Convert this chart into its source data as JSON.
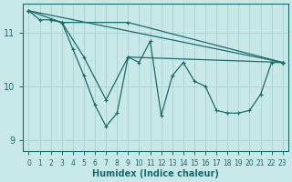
{
  "xlabel": "Humidex (Indice chaleur)",
  "bg_color": "#c8e8e8",
  "grid_color": "#aed4d4",
  "line_color": "#1a6b6b",
  "xlim": [
    -0.5,
    23.5
  ],
  "ylim": [
    8.78,
    11.55
  ],
  "yticks": [
    9,
    10,
    11
  ],
  "xticks": [
    0,
    1,
    2,
    3,
    4,
    5,
    6,
    7,
    8,
    9,
    10,
    11,
    12,
    13,
    14,
    15,
    16,
    17,
    18,
    19,
    20,
    21,
    22,
    23
  ],
  "line1_x": [
    0,
    1,
    2,
    3,
    9,
    23
  ],
  "line1_y": [
    11.42,
    11.25,
    11.25,
    11.2,
    11.2,
    10.45
  ],
  "line2_x": [
    0,
    3,
    4,
    5,
    6,
    7,
    8,
    9,
    23
  ],
  "line2_y": [
    11.42,
    11.2,
    10.7,
    10.2,
    9.65,
    9.25,
    9.5,
    10.55,
    10.45
  ],
  "line3_x": [
    2,
    3,
    5,
    7,
    9,
    10,
    11,
    12,
    13,
    14,
    15,
    16,
    17,
    18,
    19,
    20,
    21,
    22,
    23
  ],
  "line3_y": [
    11.25,
    11.2,
    10.55,
    9.75,
    10.55,
    10.45,
    10.85,
    9.45,
    10.2,
    10.45,
    10.1,
    10.0,
    9.55,
    9.5,
    9.5,
    9.55,
    9.85,
    10.45,
    10.45
  ],
  "line4_x": [
    0,
    23
  ],
  "line4_y": [
    11.42,
    10.45
  ]
}
